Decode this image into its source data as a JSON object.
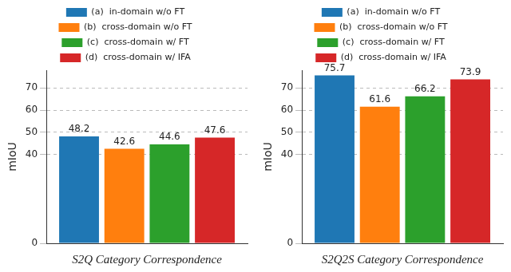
{
  "chart_data": [
    {
      "type": "bar",
      "x_label": "S2Q Category Correspondence",
      "y_label": "mIoU",
      "categories": [
        null
      ],
      "series": [
        {
          "name": "(a)  in-domain w/o FT",
          "color": "#1f77b4",
          "values": [
            48.2
          ]
        },
        {
          "name": "(b)  cross-domain w/o FT",
          "color": "#ff7f0e",
          "values": [
            42.6
          ]
        },
        {
          "name": "(c)  cross-domain w/ FT",
          "color": "#2ca02c",
          "values": [
            44.6
          ]
        },
        {
          "name": "(d)  cross-domain w/ IFA",
          "color": "#d62728",
          "values": [
            47.6
          ]
        }
      ],
      "ylim": [
        0,
        78
      ],
      "yticks": [
        0,
        40,
        50,
        60,
        70
      ],
      "grid": true,
      "legend": "top",
      "data_labels": true,
      "tick_labels": "y"
    },
    {
      "type": "bar",
      "x_label": "S2Q2S Category Correspondence",
      "y_label": "mIoU",
      "categories": [
        null
      ],
      "series": [
        {
          "name": "(a)  in-domain w/o FT",
          "color": "#1f77b4",
          "values": [
            75.7
          ]
        },
        {
          "name": "(b)  cross-domain w/o FT",
          "color": "#ff7f0e",
          "values": [
            61.6
          ]
        },
        {
          "name": "(c)  cross-domain w/ FT",
          "color": "#2ca02c",
          "values": [
            66.2
          ]
        },
        {
          "name": "(d)  cross-domain w/ IFA",
          "color": "#d62728",
          "values": [
            73.9
          ]
        }
      ],
      "ylim": [
        0,
        78
      ],
      "yticks": [
        0,
        40,
        50,
        60,
        70
      ],
      "grid": true,
      "legend": "top",
      "data_labels": true,
      "tick_labels": "y"
    }
  ]
}
